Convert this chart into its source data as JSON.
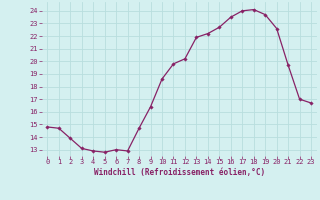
{
  "x": [
    0,
    1,
    2,
    3,
    4,
    5,
    6,
    7,
    8,
    9,
    10,
    11,
    12,
    13,
    14,
    15,
    16,
    17,
    18,
    19,
    20,
    21,
    22,
    23
  ],
  "y": [
    14.8,
    14.7,
    13.9,
    13.1,
    12.9,
    12.8,
    13.0,
    12.9,
    14.7,
    16.4,
    18.6,
    19.8,
    20.2,
    21.9,
    22.2,
    22.7,
    23.5,
    24.0,
    24.1,
    23.7,
    22.6,
    19.7,
    17.0,
    16.7
  ],
  "line_color": "#882266",
  "marker": "D",
  "marker_size": 1.8,
  "line_width": 0.9,
  "bg_color": "#d4f0f0",
  "grid_color": "#b8dede",
  "xlabel": "Windchill (Refroidissement éolien,°C)",
  "xlabel_fontsize": 5.5,
  "ytick_labels": [
    "13",
    "14",
    "15",
    "16",
    "17",
    "18",
    "19",
    "20",
    "21",
    "22",
    "23",
    "24"
  ],
  "ytick_values": [
    13,
    14,
    15,
    16,
    17,
    18,
    19,
    20,
    21,
    22,
    23,
    24
  ],
  "ylim": [
    12.5,
    24.7
  ],
  "xlim": [
    -0.5,
    23.5
  ],
  "tick_fontsize": 5.0,
  "axis_color": "#882266"
}
